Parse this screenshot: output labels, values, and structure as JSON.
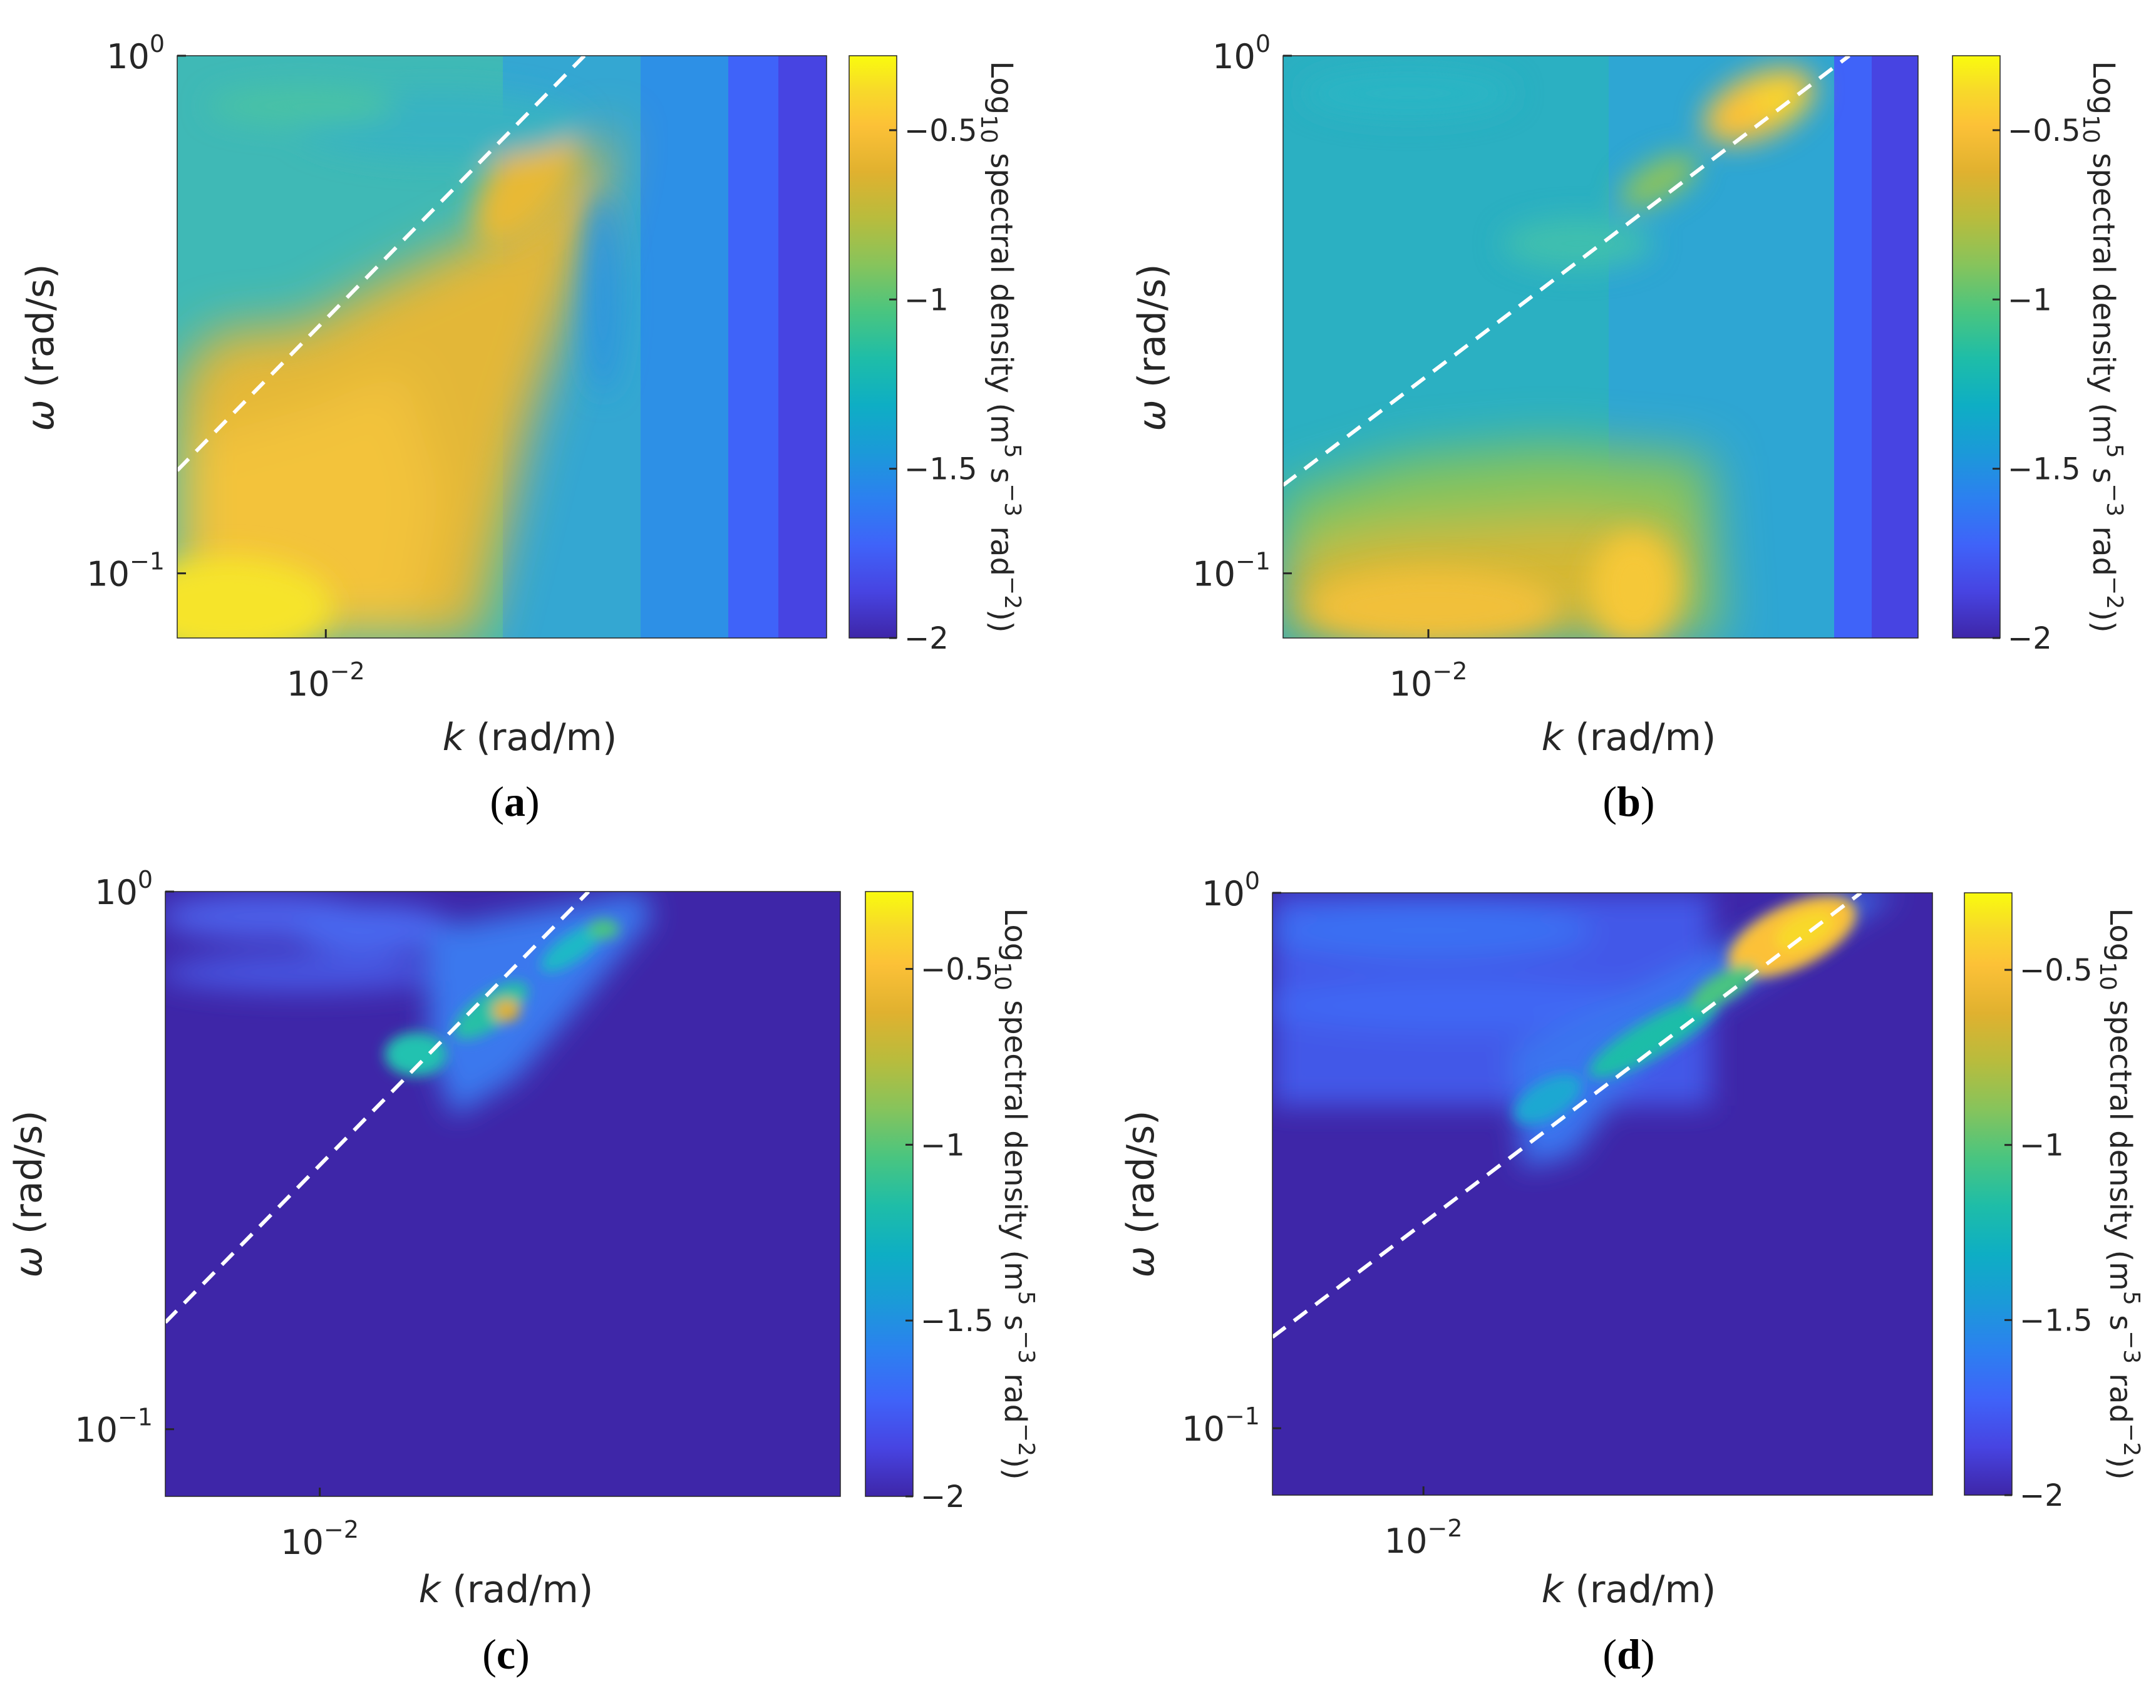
{
  "figure": {
    "panels": [
      {
        "caption_letter": "a",
        "x_label_var": "k",
        "x_label_unit": " (rad/m)",
        "y_label_var": "ω",
        "y_label_unit": " (rad/s)"
      },
      {
        "caption_letter": "b",
        "x_label_var": "k",
        "x_label_unit": " (rad/m)",
        "y_label_var": "ω",
        "y_label_unit": " (rad/s)"
      },
      {
        "caption_letter": "c",
        "x_label_var": "k",
        "x_label_unit": " (rad/m)",
        "y_label_var": "ω",
        "y_label_unit": " (rad/s)"
      },
      {
        "caption_letter": "d",
        "x_label_var": "k",
        "x_label_unit": " (rad/m)",
        "y_label_var": "ω",
        "y_label_unit": " (rad/s)"
      }
    ],
    "colorbar_label": "Log₁₀ spectral density (m⁵ s⁻³ rad⁻²)",
    "colorbar_label_parts": {
      "a": "Log",
      "b": "10",
      "c": " spectral density (m",
      "d": "5",
      "e": " s",
      "f": "−3",
      "g": " rad",
      "h": "−2",
      "i": "))"
    },
    "colorbar_ticks": [
      {
        "value": -0.5,
        "label": "−0.5"
      },
      {
        "value": -1,
        "label": "−1"
      },
      {
        "value": -1.5,
        "label": "−1.5"
      },
      {
        "value": -2,
        "label": "−2"
      }
    ],
    "colormap": [
      "#3e26a8",
      "#4744e2",
      "#3f63f9",
      "#2c80f0",
      "#1b9ad8",
      "#0eaec4",
      "#1ebda8",
      "#49c580",
      "#86c45c",
      "#b8bc3d",
      "#e0b12f",
      "#fcc137",
      "#f8d92a",
      "#f9fb0e"
    ],
    "colors": {
      "dashed_line": "#ffffff",
      "text": "#262626",
      "lowest": "#3e26a8"
    }
  },
  "chart_data": [
    {
      "panel": "a",
      "type": "heatmap",
      "title": "(a)",
      "xlabel": "k (rad/m)",
      "ylabel": "ω (rad/s)",
      "xscale": "log",
      "yscale": "log",
      "xlim": [
        0.0055,
        0.075
      ],
      "ylim": [
        0.075,
        1.0
      ],
      "clim": [
        -2,
        -0.28
      ],
      "x_ticks": [
        {
          "value": 0.01,
          "base": "10",
          "exp": "−2"
        }
      ],
      "y_ticks": [
        {
          "value": 1.0,
          "base": "10",
          "exp": "0"
        },
        {
          "value": 0.1,
          "base": "10",
          "exp": "−1"
        }
      ],
      "dispersion_line": {
        "style": "dashed",
        "color": "white",
        "points": [
          [
            0.0055,
            0.158
          ],
          [
            0.0283,
            1.0
          ]
        ]
      },
      "description": "Energetic (yellow-orange) at low k across all frequencies below the dashed curve, ridge following the curve; decays to blue at high k."
    },
    {
      "panel": "b",
      "type": "heatmap",
      "title": "(b)",
      "xlabel": "k (rad/m)",
      "ylabel": "ω (rad/s)",
      "xscale": "log",
      "yscale": "log",
      "xlim": [
        0.0055,
        0.075
      ],
      "ylim": [
        0.075,
        1.0
      ],
      "clim": [
        -2,
        -0.28
      ],
      "x_ticks": [
        {
          "value": 0.01,
          "base": "10",
          "exp": "−2"
        }
      ],
      "y_ticks": [
        {
          "value": 1.0,
          "base": "10",
          "exp": "0"
        },
        {
          "value": 0.1,
          "base": "10",
          "exp": "−1"
        }
      ],
      "dispersion_line": {
        "style": "dashed",
        "color": "white",
        "points": [
          [
            0.0055,
            0.148
          ],
          [
            0.0565,
            1.0
          ]
        ]
      },
      "description": "Mostly green-cyan; orange peak near k~0.045, ω~0.9 on the dashed curve; orange at lowest frequencies; blue at highest k."
    },
    {
      "panel": "c",
      "type": "heatmap",
      "title": "(c)",
      "xlabel": "k (rad/m)",
      "ylabel": "ω (rad/s)",
      "xscale": "log",
      "yscale": "log",
      "xlim": [
        0.0055,
        0.075
      ],
      "ylim": [
        0.075,
        1.0
      ],
      "clim": [
        -2,
        -0.28
      ],
      "x_ticks": [
        {
          "value": 0.01,
          "base": "10",
          "exp": "−2"
        }
      ],
      "y_ticks": [
        {
          "value": 1.0,
          "base": "10",
          "exp": "0"
        },
        {
          "value": 0.1,
          "base": "10",
          "exp": "−1"
        }
      ],
      "dispersion_line": {
        "style": "dashed",
        "color": "white",
        "points": [
          [
            0.0055,
            0.158
          ],
          [
            0.0283,
            1.0
          ]
        ]
      },
      "description": "Uniform minimum (dark blue) except a narrow band of energy above/along the dashed curve at high frequencies."
    },
    {
      "panel": "d",
      "type": "heatmap",
      "title": "(d)",
      "xlabel": "k (rad/m)",
      "ylabel": "ω (rad/s)",
      "xscale": "log",
      "yscale": "log",
      "xlim": [
        0.0055,
        0.075
      ],
      "ylim": [
        0.075,
        1.0
      ],
      "clim": [
        -2,
        -0.28
      ],
      "x_ticks": [
        {
          "value": 0.01,
          "base": "10",
          "exp": "−2"
        }
      ],
      "y_ticks": [
        {
          "value": 1.0,
          "base": "10",
          "exp": "0"
        },
        {
          "value": 0.1,
          "base": "10",
          "exp": "−1"
        }
      ],
      "dispersion_line": {
        "style": "dashed",
        "color": "white",
        "points": [
          [
            0.0055,
            0.148
          ],
          [
            0.0565,
            1.0
          ]
        ]
      },
      "description": "Dark blue background; light-blue energy at high frequencies above the curve with a yellow-orange peak near k~0.045, ω~0.9."
    }
  ]
}
